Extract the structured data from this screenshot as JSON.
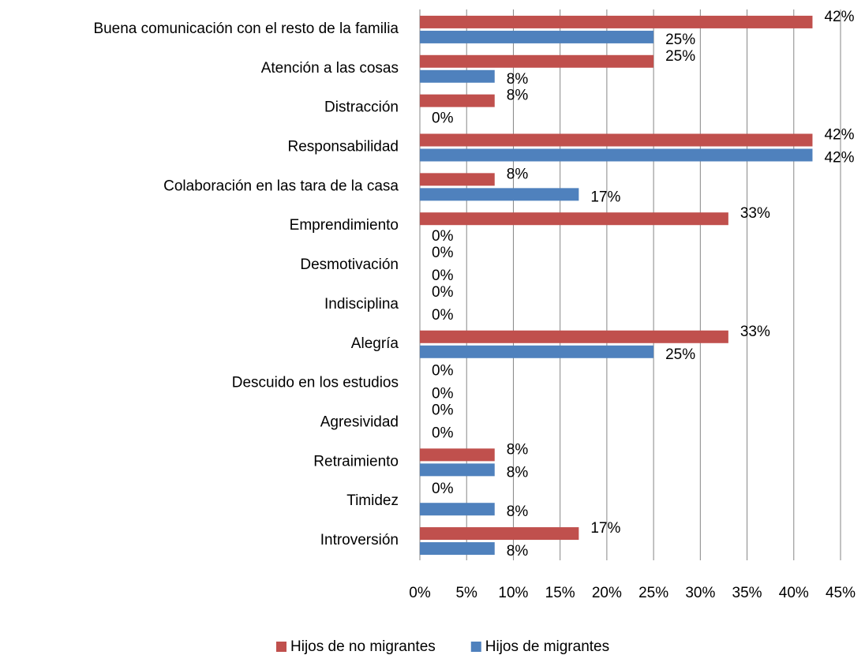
{
  "chart_data": {
    "type": "bar",
    "orientation": "horizontal",
    "categories": [
      "Buena comunicación con el resto de la familia",
      "Atención a las cosas",
      "Distracción",
      "Responsabilidad",
      "Colaboración en las tara de la casa",
      "Emprendimiento",
      "Desmotivación",
      "Indisciplina",
      "Alegría",
      "Descuido en los estudios",
      "Agresividad",
      "Retraimiento",
      "Timidez",
      "Introversión"
    ],
    "series": [
      {
        "name": "Hijos de no migrantes",
        "color": "#c0504d",
        "values": [
          42,
          25,
          8,
          42,
          8,
          33,
          0,
          0,
          33,
          0,
          0,
          8,
          0,
          17
        ],
        "value_labels": [
          "42%",
          "25%",
          "8%",
          "42%",
          "8%",
          "33%",
          "0%",
          "0%",
          "33%",
          "0%",
          "0%",
          "8%",
          "0%",
          "17%"
        ]
      },
      {
        "name": "Hijos de migrantes",
        "color": "#4f81bd",
        "values": [
          25,
          8,
          0,
          42,
          17,
          0,
          0,
          0,
          25,
          0,
          0,
          8,
          8,
          8
        ],
        "value_labels": [
          "25%",
          "8%",
          "0%",
          "42%",
          "17%",
          "0%",
          "0%",
          "0%",
          "25%",
          "0%",
          "0%",
          "8%",
          "8%",
          "8%"
        ]
      }
    ],
    "xlim": [
      0,
      45
    ],
    "xticks": [
      {
        "value": 0,
        "label": "0%"
      },
      {
        "value": 5,
        "label": "5%"
      },
      {
        "value": 10,
        "label": "10%"
      },
      {
        "value": 15,
        "label": "15%"
      },
      {
        "value": 20,
        "label": "20%"
      },
      {
        "value": 25,
        "label": "25%"
      },
      {
        "value": 30,
        "label": "30%"
      },
      {
        "value": 35,
        "label": "35%"
      },
      {
        "value": 40,
        "label": "40%"
      },
      {
        "value": 45,
        "label": "45%"
      }
    ],
    "grid": true,
    "legend": "bottom"
  }
}
